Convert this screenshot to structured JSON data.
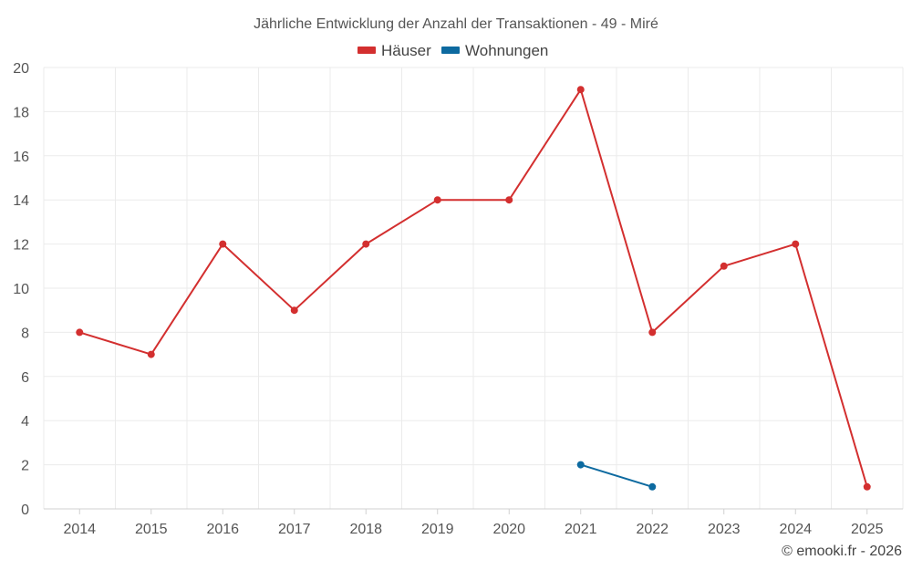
{
  "chart_data": {
    "type": "line",
    "title": "Jährliche Entwicklung der Anzahl der Transaktionen - 49 - Miré",
    "categories": [
      "2014",
      "2015",
      "2016",
      "2017",
      "2018",
      "2019",
      "2020",
      "2021",
      "2022",
      "2023",
      "2024",
      "2025"
    ],
    "series": [
      {
        "name": "Häuser",
        "color": "#d32f2f",
        "values": [
          8,
          7,
          12,
          9,
          12,
          14,
          14,
          19,
          8,
          11,
          12,
          1
        ]
      },
      {
        "name": "Wohnungen",
        "color": "#0d6aa0",
        "values": [
          null,
          null,
          null,
          null,
          null,
          null,
          null,
          2,
          1,
          null,
          null,
          null
        ]
      }
    ],
    "ylim": [
      0,
      20
    ],
    "yticks": [
      0,
      2,
      4,
      6,
      8,
      10,
      12,
      14,
      16,
      18,
      20
    ],
    "xlabel": "",
    "ylabel": "",
    "grid": true,
    "legend": "top-center"
  },
  "credit": "© emooki.fr - 2026"
}
